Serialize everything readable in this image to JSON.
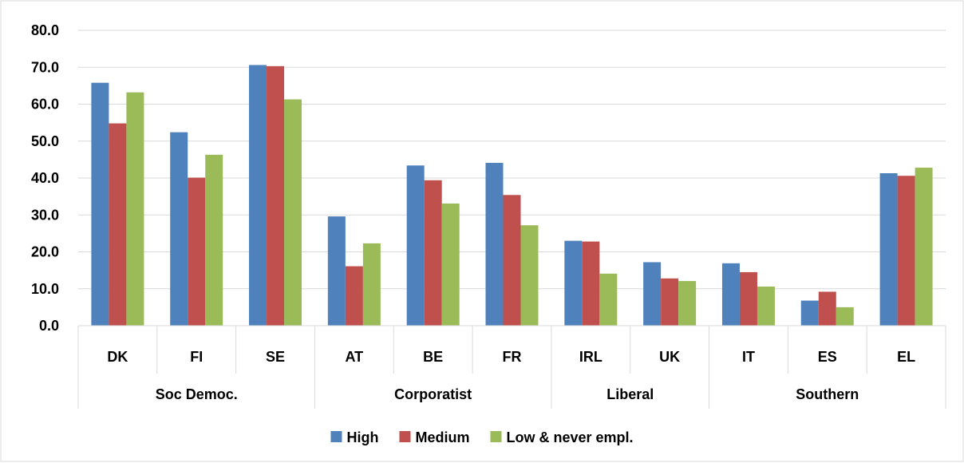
{
  "chart_data": {
    "type": "bar",
    "categories": [
      "DK",
      "FI",
      "SE",
      "AT",
      "BE",
      "FR",
      "IRL",
      "UK",
      "IT",
      "ES",
      "EL"
    ],
    "groups": [
      {
        "label": "Soc Democ.",
        "categories": [
          "DK",
          "FI",
          "SE"
        ]
      },
      {
        "label": "Corporatist",
        "categories": [
          "AT",
          "BE",
          "FR"
        ]
      },
      {
        "label": "Liberal",
        "categories": [
          "IRL",
          "UK"
        ]
      },
      {
        "label": "Southern",
        "categories": [
          "IT",
          "ES",
          "EL"
        ]
      }
    ],
    "series": [
      {
        "name": "High",
        "color": "#4f81bd",
        "values": [
          65.8,
          52.4,
          70.6,
          29.6,
          43.4,
          44.1,
          23.0,
          17.2,
          16.9,
          6.8,
          41.3
        ]
      },
      {
        "name": "Medium",
        "color": "#c0504d",
        "values": [
          54.8,
          40.1,
          70.3,
          16.1,
          39.4,
          35.4,
          22.8,
          12.8,
          14.5,
          9.2,
          40.6
        ]
      },
      {
        "name": "Low & never empl.",
        "color": "#9bbb59",
        "values": [
          63.2,
          46.3,
          61.3,
          22.3,
          33.1,
          27.2,
          14.1,
          12.1,
          10.6,
          5.0,
          42.8
        ]
      }
    ],
    "ylim": [
      0,
      80
    ],
    "yticks": [
      "0.0",
      "10.0",
      "20.0",
      "30.0",
      "40.0",
      "50.0",
      "60.0",
      "70.0",
      "80.0"
    ],
    "grid": true,
    "legend": "bottom"
  }
}
